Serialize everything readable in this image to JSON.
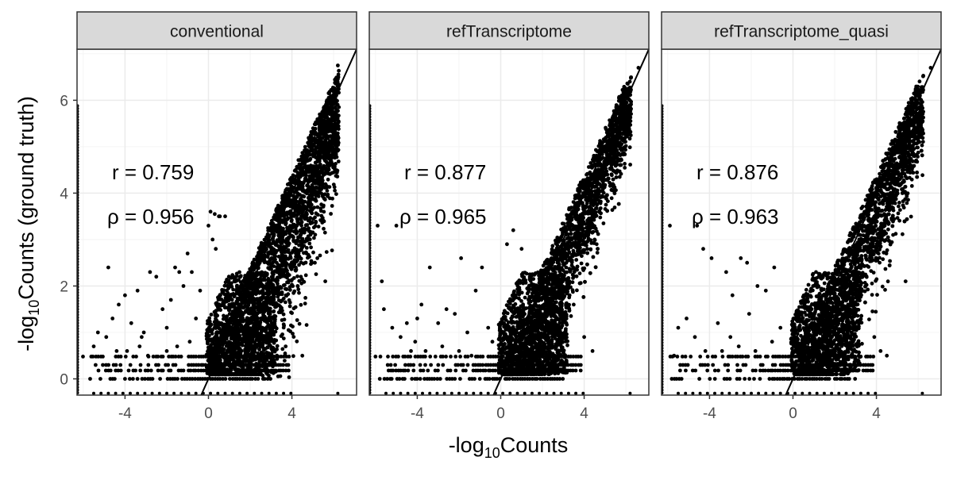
{
  "chart_data": {
    "type": "scatter",
    "xlabel": "-log10Counts",
    "ylabel": "-log10Counts (ground truth)",
    "xlabel_parts": {
      "pre": "-log",
      "sub": "10",
      "post": "Counts"
    },
    "ylabel_parts": {
      "pre": "-log",
      "sub": "10",
      "post": "Counts (ground truth)"
    },
    "xlim": [
      -6.3,
      7.1
    ],
    "ylim": [
      -0.35,
      7.1
    ],
    "x_ticks": [
      -4,
      0,
      4
    ],
    "y_ticks": [
      0,
      2,
      4,
      6
    ],
    "x_tick_labels": [
      "-4",
      "0",
      "4"
    ],
    "y_tick_labels": [
      "0",
      "2",
      "4",
      "6"
    ],
    "grid": true,
    "reference_line": {
      "slope": 1,
      "intercept": 0
    },
    "point_color": "#000000",
    "panels": [
      {
        "name": "conventional",
        "r_label": "r = 0.759",
        "rho_label": "ρ = 0.956",
        "r": 0.759,
        "rho": 0.956,
        "outliers": [
          [
            -5.3,
            1.0
          ],
          [
            -4.9,
            0.9
          ],
          [
            -4.6,
            1.3
          ],
          [
            -4.3,
            1.6
          ],
          [
            -4.0,
            1.8
          ],
          [
            -3.7,
            1.2
          ],
          [
            -3.4,
            1.9
          ],
          [
            -3.1,
            1.0
          ],
          [
            -2.8,
            2.3
          ],
          [
            -2.5,
            2.2
          ],
          [
            -2.2,
            1.5
          ],
          [
            -2.0,
            1.1
          ],
          [
            -1.8,
            1.7
          ],
          [
            -1.6,
            2.4
          ],
          [
            -1.4,
            2.3
          ],
          [
            -1.2,
            2.0
          ],
          [
            -1.0,
            2.7
          ],
          [
            -0.8,
            2.3
          ],
          [
            -0.6,
            1.3
          ],
          [
            -0.4,
            1.9
          ],
          [
            -3.9,
            0.6
          ],
          [
            -3.3,
            0.7
          ],
          [
            -2.9,
            0.5
          ],
          [
            -2.0,
            0.6
          ],
          [
            -1.5,
            0.7
          ],
          [
            -0.9,
            0.8
          ],
          [
            -4.4,
            0.6
          ],
          [
            -5.5,
            0.7
          ],
          [
            -4.8,
            2.4
          ],
          [
            -3.2,
            0.9
          ]
        ],
        "band_points": [
          [
            0.0,
            3.3
          ],
          [
            0.1,
            3.6
          ],
          [
            0.3,
            3.55
          ],
          [
            0.5,
            3.5
          ],
          [
            0.2,
            3.0
          ],
          [
            0.35,
            2.8
          ],
          [
            0.55,
            3.5
          ],
          [
            0.8,
            3.5
          ],
          [
            3.6,
            3.4
          ],
          [
            3.9,
            3.6
          ],
          [
            4.1,
            3.3
          ],
          [
            4.4,
            3.1
          ],
          [
            4.7,
            2.7
          ],
          [
            5.1,
            2.5
          ],
          [
            5.6,
            2.1
          ],
          [
            6.2,
            6.75
          ],
          [
            5.6,
            5.8
          ],
          [
            6.0,
            5.95
          ],
          [
            3.7,
            0.7
          ],
          [
            4.5,
            0.5
          ]
        ],
        "spread": 0.55
      },
      {
        "name": "refTranscriptome",
        "r_label": "r = 0.877",
        "rho_label": "ρ = 0.965",
        "r": 0.877,
        "rho": 0.965,
        "outliers": [
          [
            -5.9,
            3.3
          ],
          [
            -5.6,
            1.5
          ],
          [
            -5.2,
            1.1
          ],
          [
            -4.8,
            0.9
          ],
          [
            -4.5,
            1.2
          ],
          [
            -4.1,
            0.8
          ],
          [
            -3.8,
            1.6
          ],
          [
            -3.4,
            2.4
          ],
          [
            -3.0,
            1.2
          ],
          [
            -2.6,
            1.5
          ],
          [
            -2.2,
            1.4
          ],
          [
            -1.9,
            2.6
          ],
          [
            -1.6,
            1.0
          ],
          [
            -1.2,
            1.9
          ],
          [
            -0.9,
            2.4
          ],
          [
            -0.6,
            1.1
          ],
          [
            -5.0,
            3.3
          ],
          [
            -4.3,
            0.6
          ],
          [
            -3.6,
            0.6
          ],
          [
            -2.8,
            0.7
          ],
          [
            -2.0,
            0.6
          ],
          [
            -1.4,
            0.5
          ],
          [
            -0.4,
            0.8
          ],
          [
            -5.7,
            2.1
          ],
          [
            -4.0,
            1.3
          ]
        ],
        "band_points": [
          [
            0.3,
            2.9
          ],
          [
            0.6,
            3.2
          ],
          [
            1.0,
            2.8
          ],
          [
            3.9,
            3.1
          ],
          [
            4.2,
            3.1
          ],
          [
            4.5,
            3.0
          ],
          [
            4.6,
            2.9
          ],
          [
            3.3,
            1.8
          ],
          [
            3.5,
            1.6
          ],
          [
            4.4,
            0.6
          ],
          [
            4.0,
            0.9
          ],
          [
            6.6,
            6.7
          ]
        ],
        "spread": 0.35
      },
      {
        "name": "refTranscriptome_quasi",
        "r_label": "r = 0.876",
        "rho_label": "ρ = 0.963",
        "r": 0.876,
        "rho": 0.963,
        "outliers": [
          [
            -5.9,
            3.3
          ],
          [
            -5.5,
            1.1
          ],
          [
            -5.1,
            1.3
          ],
          [
            -4.7,
            0.9
          ],
          [
            -4.3,
            2.8
          ],
          [
            -3.9,
            2.6
          ],
          [
            -3.6,
            1.2
          ],
          [
            -3.2,
            2.3
          ],
          [
            -2.9,
            1.8
          ],
          [
            -2.5,
            2.6
          ],
          [
            -2.1,
            1.4
          ],
          [
            -1.7,
            2.0
          ],
          [
            -1.3,
            1.9
          ],
          [
            -0.9,
            2.4
          ],
          [
            -0.6,
            1.1
          ],
          [
            -4.6,
            3.3
          ],
          [
            -4.2,
            0.6
          ],
          [
            -3.4,
            0.6
          ],
          [
            -2.6,
            0.7
          ],
          [
            -1.8,
            0.6
          ],
          [
            -1.0,
            0.8
          ],
          [
            -5.7,
            0.5
          ],
          [
            -3.0,
            0.9
          ],
          [
            -2.2,
            2.5
          ]
        ],
        "band_points": [
          [
            3.2,
            3.1
          ],
          [
            3.5,
            3.0
          ],
          [
            3.8,
            3.2
          ],
          [
            4.4,
            3.3
          ],
          [
            4.8,
            3.1
          ],
          [
            5.4,
            2.1
          ],
          [
            4.2,
            0.6
          ],
          [
            4.5,
            0.5
          ],
          [
            3.9,
            0.9
          ],
          [
            6.6,
            6.7
          ]
        ],
        "spread": 0.4
      }
    ]
  }
}
